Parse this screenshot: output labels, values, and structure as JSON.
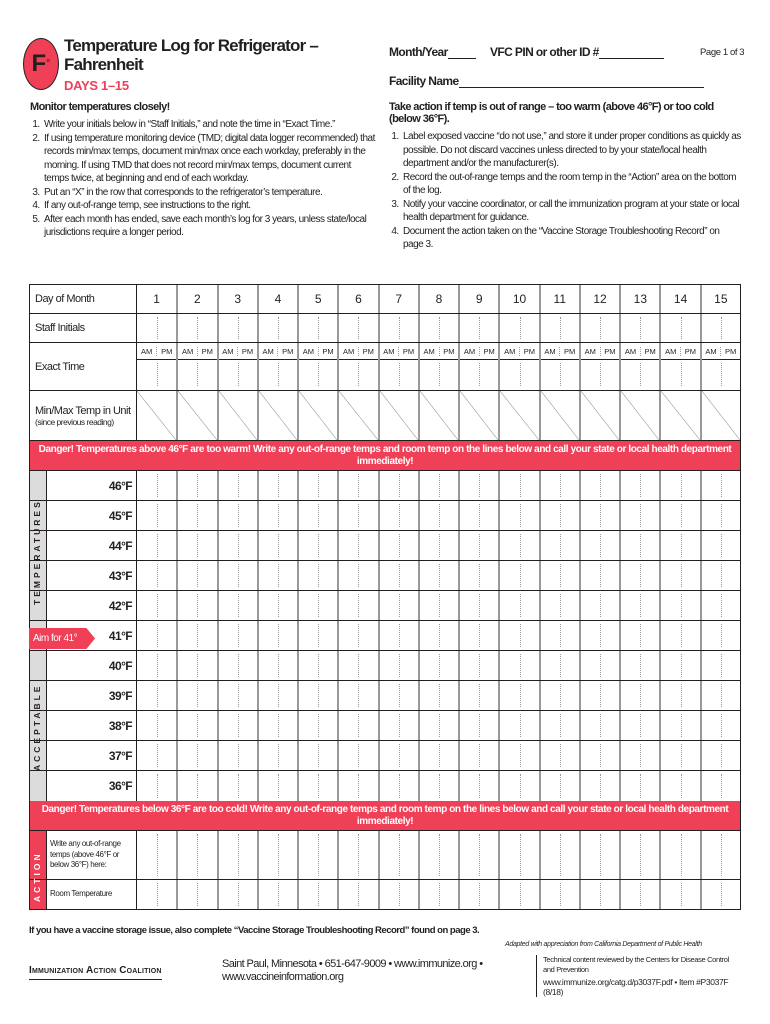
{
  "header": {
    "logo": "F",
    "logo_degree": "°",
    "title": "Temperature Log for Refrigerator – Fahrenheit",
    "subtitle": "DAYS 1–15",
    "month_year_label": "Month/Year",
    "vfc_label": "VFC PIN or other ID #",
    "page": "Page 1 of 3",
    "facility_label": "Facility Name"
  },
  "left": {
    "heading": "Monitor temperatures closely!",
    "items": [
      "Write your initials below in “Staff Initials,” and note the time in “Exact Time.”",
      "If using temperature monitoring device (TMD; digital data logger recommended) that records min/max temps, document min/max once each workday, preferably in the morning. If using TMD that does not record min/max temps, document current temps twice, at beginning and end of each workday.",
      "Put an “X” in the row that corresponds to the refrigerator’s temperature.",
      "If any out-of-range temp, see instructions to the right.",
      "After each month has ended, save each month’s log for 3 years, unless state/local jurisdictions require a longer period."
    ]
  },
  "right": {
    "heading": "Take action if temp is out of range – too warm (above 46°F) or too cold (below 36°F).",
    "items": [
      "Label exposed vaccine “do not use,” and store it under proper conditions as quickly as possible. Do not discard vaccines unless directed to by your state/local health department and/or the manufacturer(s).",
      "Record the out-of-range temps and the room temp in the “Action” area on the bottom of the log.",
      "Notify your vaccine coordinator, or call the immunization program at your state or local health department for guidance.",
      "Document the action taken on the “Vaccine Storage Troubleshooting Record” on page 3."
    ]
  },
  "grid": {
    "day_label": "Day of Month",
    "days": [
      "1",
      "2",
      "3",
      "4",
      "5",
      "6",
      "7",
      "8",
      "9",
      "10",
      "11",
      "12",
      "13",
      "14",
      "15"
    ],
    "staff_label": "Staff Initials",
    "time_label": "Exact Time",
    "am": "AM",
    "pm": "PM",
    "minmax_label": "Min/Max Temp in Unit",
    "minmax_sub": "(since previous reading)"
  },
  "danger_warm": "Danger! Temperatures above 46°F are too warm! Write any out-of-range temps and room temp on the lines below and call your state or local health department immediately!",
  "danger_cold": "Danger! Temperatures below 36°F are too cold! Write any out-of-range temps and room temp on the lines below and call your state or local health department immediately!",
  "temps": [
    "46°F",
    "45°F",
    "44°F",
    "43°F",
    "42°F",
    "41°F",
    "40°F",
    "39°F",
    "38°F",
    "37°F",
    "36°F"
  ],
  "band_top": "TEMPERATURES",
  "band_bottom": "ACCEPTABLE",
  "aim": "Aim for 41°",
  "action": {
    "band": "ACTION",
    "write_label": "Write any out-of-range temps (above 46°F or below 36°F) here:",
    "room_label": "Room Temperature"
  },
  "footer": {
    "note": "If you have a vaccine storage issue, also complete “Vaccine Storage Troubleshooting Record” found on page 3.",
    "adapted": "Adapted with appreciation from California Department of Public Health",
    "org": "Immunization Action Coalition",
    "contact": "Saint Paul, Minnesota • 651-647-9009 • www.immunize.org • www.vaccineinformation.org",
    "reviewed": "Technical content reviewed by the Centers for Disease Control and Prevention",
    "item": "www.immunize.org/catg.d/p3037F.pdf • Item #P3037F (8/18)"
  },
  "colors": {
    "accent": "#ef4058",
    "band": "#dcdcdc"
  }
}
